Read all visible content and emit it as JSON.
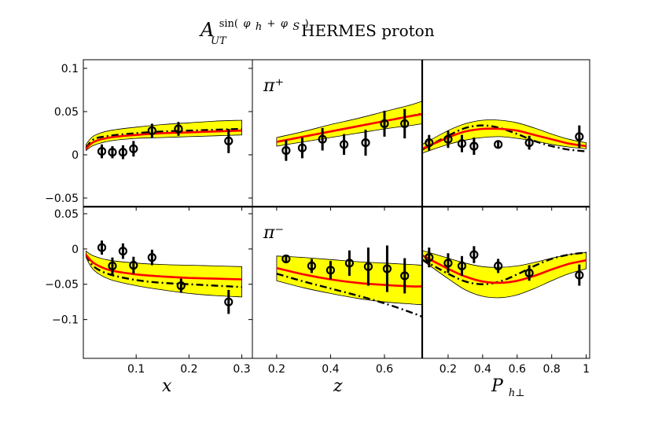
{
  "title": {
    "prefix": "A",
    "sup_text": "sin(",
    "sup_phi_h": "φ",
    "sup_h": "h",
    "sup_plus": "+",
    "sup_phi_s": "φ",
    "sup_s": "S",
    "sup_close": ")",
    "sub": "UT",
    "rest": "HERMES proton"
  },
  "colors": {
    "band": "#ffff00",
    "curve": "#ff0000",
    "dashed": "#000000",
    "points": "#000000"
  },
  "chart_data": [
    {
      "type": "line",
      "row": "pi_plus",
      "col": "x",
      "panel_label": "",
      "xlim": [
        0.0,
        0.32
      ],
      "ylim": [
        -0.06,
        0.11
      ],
      "yticks": [
        "0.1",
        "0.05",
        "0",
        "−0.05"
      ],
      "ytick_values": [
        0.1,
        0.05,
        0,
        -0.05
      ],
      "xticks": [],
      "xtick_values": [],
      "band_x": [
        0.005,
        0.02,
        0.05,
        0.1,
        0.15,
        0.2,
        0.25,
        0.3
      ],
      "band_upper": [
        0.012,
        0.022,
        0.028,
        0.032,
        0.035,
        0.037,
        0.039,
        0.04
      ],
      "band_lower": [
        0.005,
        0.011,
        0.016,
        0.019,
        0.02,
        0.021,
        0.022,
        0.023
      ],
      "central_x": [
        0.005,
        0.02,
        0.05,
        0.1,
        0.15,
        0.2,
        0.25,
        0.3
      ],
      "central_y": [
        0.007,
        0.015,
        0.02,
        0.023,
        0.025,
        0.026,
        0.027,
        0.028
      ],
      "dashed_x": [
        0.005,
        0.02,
        0.05,
        0.1,
        0.15,
        0.2,
        0.25,
        0.3
      ],
      "dashed_y": [
        0.008,
        0.018,
        0.022,
        0.025,
        0.027,
        0.028,
        0.029,
        0.03
      ],
      "points": [
        {
          "x": 0.035,
          "y": 0.004,
          "err": 0.008
        },
        {
          "x": 0.055,
          "y": 0.003,
          "err": 0.007
        },
        {
          "x": 0.075,
          "y": 0.003,
          "err": 0.008
        },
        {
          "x": 0.095,
          "y": 0.007,
          "err": 0.009
        },
        {
          "x": 0.13,
          "y": 0.028,
          "err": 0.008
        },
        {
          "x": 0.18,
          "y": 0.03,
          "err": 0.008
        },
        {
          "x": 0.275,
          "y": 0.016,
          "err": 0.014
        }
      ]
    },
    {
      "type": "line",
      "row": "pi_plus",
      "col": "z",
      "panel_label": "π⁺",
      "xlim": [
        0.11,
        0.74
      ],
      "ylim": [
        -0.06,
        0.11
      ],
      "yticks": [],
      "ytick_values": [],
      "xticks": [],
      "xtick_values": [],
      "band_x": [
        0.2,
        0.3,
        0.4,
        0.5,
        0.6,
        0.7,
        0.74
      ],
      "band_upper": [
        0.02,
        0.027,
        0.035,
        0.042,
        0.05,
        0.058,
        0.062
      ],
      "band_lower": [
        0.01,
        0.015,
        0.02,
        0.025,
        0.03,
        0.034,
        0.036
      ],
      "central_x": [
        0.2,
        0.3,
        0.4,
        0.5,
        0.6,
        0.7,
        0.74
      ],
      "central_y": [
        0.015,
        0.021,
        0.027,
        0.033,
        0.039,
        0.045,
        0.047
      ],
      "dashed_x": [
        0.2,
        0.3,
        0.4,
        0.5,
        0.6,
        0.7,
        0.74
      ],
      "dashed_y": [
        0.015,
        0.021,
        0.027,
        0.033,
        0.039,
        0.045,
        0.048
      ],
      "points": [
        {
          "x": 0.235,
          "y": 0.005,
          "err": 0.012
        },
        {
          "x": 0.295,
          "y": 0.008,
          "err": 0.012
        },
        {
          "x": 0.37,
          "y": 0.018,
          "err": 0.013
        },
        {
          "x": 0.45,
          "y": 0.012,
          "err": 0.012
        },
        {
          "x": 0.53,
          "y": 0.014,
          "err": 0.015
        },
        {
          "x": 0.6,
          "y": 0.036,
          "err": 0.015
        },
        {
          "x": 0.675,
          "y": 0.036,
          "err": 0.017
        }
      ]
    },
    {
      "type": "line",
      "row": "pi_plus",
      "col": "ph",
      "panel_label": "",
      "xlim": [
        0.05,
        1.02
      ],
      "ylim": [
        -0.06,
        0.11
      ],
      "yticks": [],
      "ytick_values": [],
      "xticks": [],
      "xtick_values": [],
      "band_x": [
        0.05,
        0.2,
        0.3,
        0.4,
        0.5,
        0.6,
        0.7,
        0.8,
        0.9,
        1.0
      ],
      "band_upper": [
        0.012,
        0.028,
        0.036,
        0.04,
        0.04,
        0.037,
        0.031,
        0.024,
        0.018,
        0.014
      ],
      "band_lower": [
        0.002,
        0.012,
        0.017,
        0.02,
        0.021,
        0.019,
        0.016,
        0.012,
        0.009,
        0.007
      ],
      "central_x": [
        0.05,
        0.2,
        0.3,
        0.4,
        0.5,
        0.6,
        0.7,
        0.8,
        0.9,
        1.0
      ],
      "central_y": [
        0.007,
        0.02,
        0.027,
        0.03,
        0.03,
        0.028,
        0.023,
        0.018,
        0.013,
        0.01
      ],
      "dashed_x": [
        0.05,
        0.2,
        0.3,
        0.4,
        0.5,
        0.6,
        0.7,
        0.8,
        0.9,
        1.0
      ],
      "dashed_y": [
        0.006,
        0.022,
        0.031,
        0.034,
        0.031,
        0.024,
        0.016,
        0.01,
        0.006,
        0.004
      ],
      "points": [
        {
          "x": 0.09,
          "y": 0.014,
          "err": 0.009
        },
        {
          "x": 0.2,
          "y": 0.018,
          "err": 0.01
        },
        {
          "x": 0.28,
          "y": 0.013,
          "err": 0.01
        },
        {
          "x": 0.35,
          "y": 0.01,
          "err": 0.01
        },
        {
          "x": 0.49,
          "y": 0.012,
          "err": 0.003
        },
        {
          "x": 0.67,
          "y": 0.014,
          "err": 0.008
        },
        {
          "x": 0.96,
          "y": 0.021,
          "err": 0.013
        }
      ]
    },
    {
      "type": "line",
      "row": "pi_minus",
      "col": "x",
      "panel_label": "",
      "xlim": [
        0.0,
        0.32
      ],
      "ylim": [
        -0.155,
        0.06
      ],
      "yticks": [
        "0.05",
        "0",
        "−0.05",
        "−0.1"
      ],
      "ytick_values": [
        0.05,
        0,
        -0.05,
        -0.1
      ],
      "xticks": [
        "0.1",
        "0.2",
        "0.3"
      ],
      "xtick_values": [
        0.1,
        0.2,
        0.3
      ],
      "band_x": [
        0.005,
        0.02,
        0.05,
        0.1,
        0.15,
        0.2,
        0.25,
        0.3
      ],
      "band_upper": [
        -0.003,
        -0.01,
        -0.016,
        -0.02,
        -0.022,
        -0.023,
        -0.024,
        -0.025
      ],
      "band_lower": [
        -0.012,
        -0.03,
        -0.043,
        -0.052,
        -0.058,
        -0.063,
        -0.066,
        -0.068
      ],
      "central_x": [
        0.005,
        0.02,
        0.05,
        0.1,
        0.15,
        0.2,
        0.25,
        0.3
      ],
      "central_y": [
        -0.008,
        -0.02,
        -0.03,
        -0.036,
        -0.039,
        -0.041,
        -0.042,
        -0.043
      ],
      "dashed_x": [
        0.005,
        0.02,
        0.05,
        0.1,
        0.15,
        0.2,
        0.25,
        0.3
      ],
      "dashed_y": [
        -0.008,
        -0.025,
        -0.036,
        -0.044,
        -0.048,
        -0.05,
        -0.052,
        -0.054
      ],
      "points": [
        {
          "x": 0.035,
          "y": 0.002,
          "err": 0.01
        },
        {
          "x": 0.055,
          "y": -0.024,
          "err": 0.012
        },
        {
          "x": 0.075,
          "y": -0.003,
          "err": 0.011
        },
        {
          "x": 0.095,
          "y": -0.023,
          "err": 0.012
        },
        {
          "x": 0.13,
          "y": -0.012,
          "err": 0.011
        },
        {
          "x": 0.185,
          "y": -0.052,
          "err": 0.01
        },
        {
          "x": 0.275,
          "y": -0.075,
          "err": 0.017
        }
      ]
    },
    {
      "type": "line",
      "row": "pi_minus",
      "col": "z",
      "panel_label": "π⁻",
      "xlim": [
        0.11,
        0.74
      ],
      "ylim": [
        -0.155,
        0.06
      ],
      "yticks": [],
      "ytick_values": [],
      "xticks": [
        "0.2",
        "0.4",
        "0.6"
      ],
      "xtick_values": [
        0.2,
        0.4,
        0.6
      ],
      "band_x": [
        0.2,
        0.3,
        0.4,
        0.5,
        0.6,
        0.7,
        0.74
      ],
      "band_upper": [
        -0.01,
        -0.012,
        -0.015,
        -0.018,
        -0.02,
        -0.022,
        -0.023
      ],
      "band_lower": [
        -0.045,
        -0.055,
        -0.063,
        -0.07,
        -0.075,
        -0.078,
        -0.079
      ],
      "central_x": [
        0.2,
        0.3,
        0.4,
        0.5,
        0.6,
        0.7,
        0.74
      ],
      "central_y": [
        -0.027,
        -0.036,
        -0.043,
        -0.048,
        -0.051,
        -0.053,
        -0.053
      ],
      "dashed_x": [
        0.2,
        0.3,
        0.4,
        0.5,
        0.6,
        0.7,
        0.74
      ],
      "dashed_y": [
        -0.035,
        -0.046,
        -0.056,
        -0.066,
        -0.077,
        -0.09,
        -0.096
      ],
      "points": [
        {
          "x": 0.235,
          "y": -0.014,
          "err": 0.006
        },
        {
          "x": 0.33,
          "y": -0.024,
          "err": 0.01
        },
        {
          "x": 0.4,
          "y": -0.03,
          "err": 0.013
        },
        {
          "x": 0.47,
          "y": -0.02,
          "err": 0.018
        },
        {
          "x": 0.54,
          "y": -0.025,
          "err": 0.027
        },
        {
          "x": 0.61,
          "y": -0.028,
          "err": 0.033
        },
        {
          "x": 0.675,
          "y": -0.038,
          "err": 0.025
        }
      ]
    },
    {
      "type": "line",
      "row": "pi_minus",
      "col": "ph",
      "panel_label": "",
      "xlim": [
        0.05,
        1.02
      ],
      "ylim": [
        -0.155,
        0.06
      ],
      "yticks": [],
      "ytick_values": [],
      "xticks": [
        "0.2",
        "0.4",
        "0.6",
        "0.8",
        "1"
      ],
      "xtick_values": [
        0.2,
        0.4,
        0.6,
        0.8,
        1.0
      ],
      "band_x": [
        0.05,
        0.2,
        0.3,
        0.4,
        0.5,
        0.6,
        0.7,
        0.8,
        0.9,
        1.0
      ],
      "band_upper": [
        -0.002,
        -0.013,
        -0.02,
        -0.025,
        -0.026,
        -0.024,
        -0.019,
        -0.013,
        -0.008,
        -0.005
      ],
      "band_lower": [
        -0.016,
        -0.042,
        -0.058,
        -0.067,
        -0.069,
        -0.065,
        -0.056,
        -0.045,
        -0.035,
        -0.028
      ],
      "central_x": [
        0.05,
        0.2,
        0.3,
        0.4,
        0.5,
        0.6,
        0.7,
        0.8,
        0.9,
        1.0
      ],
      "central_y": [
        -0.009,
        -0.028,
        -0.039,
        -0.046,
        -0.048,
        -0.045,
        -0.038,
        -0.029,
        -0.021,
        -0.016
      ],
      "dashed_x": [
        0.05,
        0.2,
        0.3,
        0.4,
        0.5,
        0.6,
        0.7,
        0.8,
        0.9,
        1.0
      ],
      "dashed_y": [
        -0.015,
        -0.035,
        -0.046,
        -0.05,
        -0.046,
        -0.036,
        -0.024,
        -0.014,
        -0.008,
        -0.005
      ],
      "points": [
        {
          "x": 0.09,
          "y": -0.012,
          "err": 0.014
        },
        {
          "x": 0.2,
          "y": -0.02,
          "err": 0.014
        },
        {
          "x": 0.28,
          "y": -0.024,
          "err": 0.014
        },
        {
          "x": 0.35,
          "y": -0.008,
          "err": 0.012
        },
        {
          "x": 0.49,
          "y": -0.024,
          "err": 0.01
        },
        {
          "x": 0.67,
          "y": -0.034,
          "err": 0.011
        },
        {
          "x": 0.96,
          "y": -0.037,
          "err": 0.015
        }
      ]
    }
  ],
  "axis_labels": {
    "x": {
      "main": "x",
      "sub": ""
    },
    "z": {
      "main": "z",
      "sub": ""
    },
    "ph": {
      "main": "P",
      "sub": "h⊥"
    }
  }
}
